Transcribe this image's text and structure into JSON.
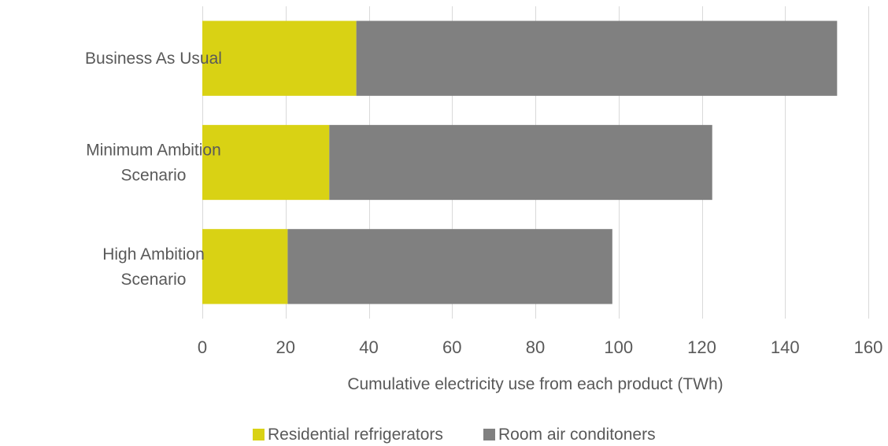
{
  "chart_data": {
    "type": "bar",
    "orientation": "horizontal",
    "stacked": true,
    "categories": [
      [
        "Business As Usual"
      ],
      [
        "Minimum Ambition",
        "Scenario"
      ],
      [
        "High Ambition",
        "Scenario"
      ]
    ],
    "series": [
      {
        "name": "Residential refrigerators",
        "color": "#d9d214",
        "values": [
          37,
          30.5,
          20.5
        ]
      },
      {
        "name": "Room air conditoners",
        "color": "#808080",
        "values": [
          115.5,
          92,
          78
        ]
      }
    ],
    "xlim": [
      0,
      160
    ],
    "xticks": [
      0,
      20,
      40,
      60,
      80,
      100,
      120,
      140,
      160
    ],
    "xlabel": "Cumulative electricity use from each product (TWh)",
    "ylabel": "",
    "title": "",
    "grid": "vertical",
    "legend": "bottom"
  }
}
